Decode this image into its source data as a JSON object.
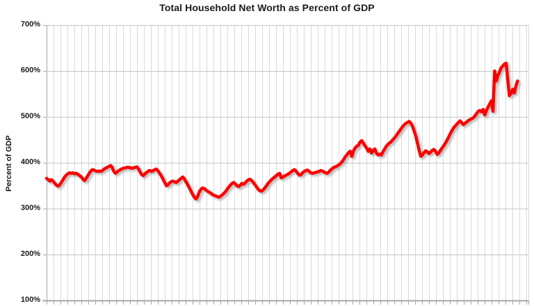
{
  "title": "Total Household Net Worth as Percent of GDP",
  "y_axis": {
    "label": "Percent of GDP",
    "tick_labels": [
      "700%",
      "600%",
      "500%",
      "400%",
      "300%",
      "200%",
      "100%"
    ],
    "tick_values": [
      700,
      600,
      500,
      400,
      300,
      200,
      100
    ]
  },
  "x_axis": {
    "tick_labels_visible": false,
    "gridline_interval": "1 year",
    "note_rendered_pixels_only": "year labels are cropped off the bottom of the image"
  },
  "colors": {
    "line": "#fb0000",
    "shadow": "#9a9a9a",
    "grid_vertical": "#d9d9d9",
    "grid_horizontal": "#c6c6c6",
    "axis": "#a6a6a6",
    "text": "#1a1a1a",
    "background": "#ffffff"
  },
  "chart_data": {
    "type": "line",
    "title": "Total Household Net Worth as Percent of GDP",
    "xlabel": "",
    "ylabel": "Percent of GDP",
    "ylim": [
      100,
      700
    ],
    "xlim_years": [
      1952,
      2025.4
    ],
    "grid": "on",
    "legend": "none",
    "series_name": "Household net worth as percent of GDP",
    "x_start": 1952.0,
    "x_step": 0.25,
    "x_unit": "year (quarterly samples)",
    "values": [
      366,
      363,
      360,
      363,
      360,
      355,
      351,
      349,
      352,
      357,
      363,
      369,
      373,
      376,
      378,
      377,
      378,
      376,
      377,
      375,
      372,
      370,
      365,
      361,
      365,
      371,
      377,
      382,
      385,
      384,
      382,
      381,
      382,
      381,
      383,
      386,
      388,
      390,
      392,
      394,
      390,
      381,
      377,
      380,
      383,
      385,
      387,
      388,
      389,
      390,
      390,
      389,
      388,
      389,
      390,
      391,
      387,
      380,
      374,
      372,
      376,
      379,
      382,
      383,
      381,
      383,
      385,
      386,
      382,
      376,
      371,
      364,
      357,
      350,
      352,
      356,
      359,
      360,
      358,
      357,
      360,
      363,
      366,
      369,
      365,
      358,
      352,
      345,
      338,
      331,
      325,
      321,
      326,
      336,
      342,
      345,
      344,
      341,
      338,
      336,
      334,
      331,
      329,
      328,
      326,
      325,
      327,
      330,
      333,
      337,
      342,
      347,
      351,
      355,
      357,
      354,
      350,
      348,
      351,
      355,
      353,
      356,
      360,
      363,
      364,
      361,
      357,
      352,
      347,
      342,
      339,
      338,
      341,
      345,
      350,
      355,
      359,
      363,
      366,
      369,
      372,
      375,
      377,
      367,
      369,
      371,
      373,
      375,
      377,
      380,
      383,
      385,
      382,
      377,
      373,
      374,
      378,
      381,
      383,
      384,
      381,
      378,
      377,
      378,
      379,
      380,
      381,
      383,
      382,
      380,
      378,
      377,
      380,
      384,
      387,
      390,
      391,
      393,
      395,
      398,
      402,
      407,
      413,
      417,
      422,
      425,
      414,
      426,
      432,
      436,
      438,
      445,
      448,
      443,
      437,
      432,
      425,
      430,
      421,
      427,
      430,
      421,
      417,
      419,
      417,
      424,
      430,
      436,
      440,
      443,
      446,
      450,
      454,
      459,
      464,
      469,
      474,
      479,
      483,
      486,
      488,
      490,
      486,
      479,
      469,
      457,
      443,
      427,
      414,
      417,
      422,
      426,
      424,
      420,
      423,
      427,
      429,
      425,
      418,
      421,
      427,
      432,
      437,
      443,
      449,
      456,
      463,
      470,
      476,
      480,
      484,
      488,
      491,
      487,
      483,
      486,
      489,
      492,
      494,
      496,
      498,
      502,
      507,
      512,
      514,
      511,
      516,
      504,
      514,
      521,
      528,
      535,
      512,
      600,
      578,
      590,
      598,
      607,
      611,
      615,
      617,
      580,
      546,
      551,
      560,
      552,
      568,
      578
    ]
  }
}
